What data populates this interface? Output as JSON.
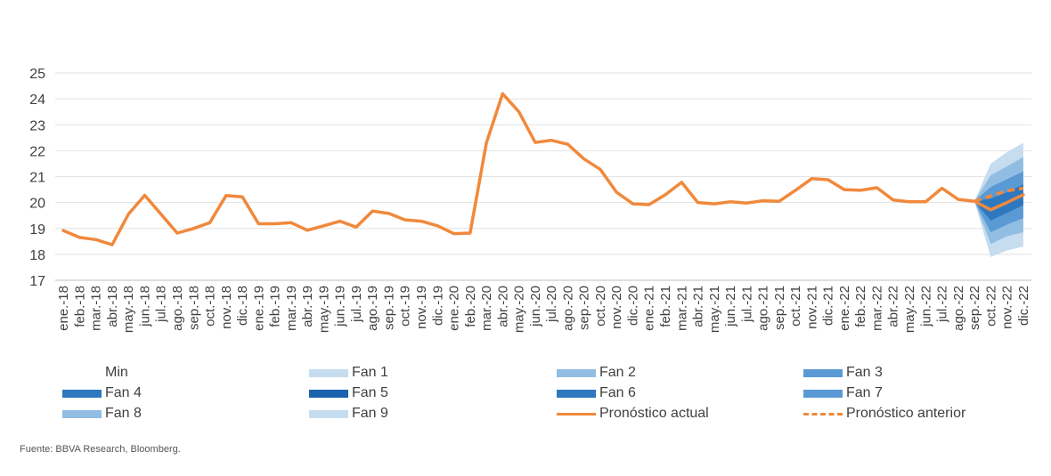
{
  "chart_data": {
    "type": "line",
    "title": "",
    "xlabel": "",
    "ylabel": "",
    "ylim": [
      17,
      25
    ],
    "yticks": [
      "25",
      "24",
      "23",
      "22",
      "21",
      "20",
      "19",
      "18",
      "17"
    ],
    "categories": [
      "ene.-18",
      "feb.-18",
      "mar.-18",
      "abr.-18",
      "may.-18",
      "jun.-18",
      "jul.-18",
      "ago.-18",
      "sep.-18",
      "oct.-18",
      "nov.-18",
      "dic.-18",
      "ene.-19",
      "feb.-19",
      "mar.-19",
      "abr.-19",
      "may.-19",
      "jun.-19",
      "jul.-19",
      "ago.-19",
      "sep.-19",
      "oct.-19",
      "nov.-19",
      "dic.-19",
      "ene.-20",
      "feb.-20",
      "mar.-20",
      "abr.-20",
      "may.-20",
      "jun.-20",
      "jul.-20",
      "ago.-20",
      "sep.-20",
      "oct.-20",
      "nov.-20",
      "dic.-20",
      "ene.-21",
      "feb.-21",
      "mar.-21",
      "abr.-21",
      "may.-21",
      "jun.-21",
      "jul.-21",
      "ago.-21",
      "sep.-21",
      "oct.-21",
      "nov.-21",
      "dic.-21",
      "ene.-22",
      "feb.-22",
      "mar.-22",
      "abr.-22",
      "may.-22",
      "jun.-22",
      "jul.-22",
      "ago.-22",
      "sep.-22",
      "oct.-22",
      "nov.-22",
      "dic.-22"
    ],
    "series": [
      {
        "name": "Pronóstico actual",
        "color": "#f0893c",
        "dashed": false,
        "values": [
          18.92,
          18.65,
          18.57,
          18.37,
          19.55,
          20.28,
          19.55,
          18.82,
          19.0,
          19.22,
          20.27,
          20.22,
          19.18,
          19.18,
          19.22,
          18.93,
          19.1,
          19.28,
          19.05,
          19.67,
          19.58,
          19.33,
          19.28,
          19.1,
          18.8,
          18.82,
          22.3,
          24.2,
          23.5,
          22.32,
          22.4,
          22.25,
          21.68,
          21.28,
          20.4,
          19.95,
          19.92,
          20.3,
          20.78,
          20.0,
          19.95,
          20.03,
          19.98,
          20.07,
          20.05,
          20.47,
          20.92,
          20.88,
          20.5,
          20.47,
          20.57,
          20.1,
          20.03,
          20.03,
          20.55,
          20.12,
          20.05,
          19.72,
          20.0,
          20.3
        ]
      },
      {
        "name": "Pronóstico anterior",
        "color": "#f0893c",
        "dashed": true,
        "values": [
          null,
          null,
          null,
          null,
          null,
          null,
          null,
          null,
          null,
          null,
          null,
          null,
          null,
          null,
          null,
          null,
          null,
          null,
          null,
          null,
          null,
          null,
          null,
          null,
          null,
          null,
          null,
          null,
          null,
          null,
          null,
          null,
          null,
          null,
          null,
          null,
          null,
          null,
          null,
          null,
          null,
          null,
          null,
          null,
          null,
          null,
          null,
          null,
          null,
          null,
          null,
          null,
          null,
          null,
          null,
          null,
          20.05,
          20.25,
          20.45,
          20.55
        ]
      }
    ],
    "fan": {
      "start_index": 56,
      "center": [
        20.05,
        19.72,
        20.0,
        20.3
      ],
      "bands": [
        {
          "lower": [
            20.05,
            17.9,
            18.15,
            18.3
          ],
          "upper": [
            20.05,
            21.5,
            21.95,
            22.3
          ],
          "color": "#c6dcef"
        },
        {
          "lower": [
            20.05,
            18.4,
            18.7,
            18.85
          ],
          "upper": [
            20.05,
            21.05,
            21.4,
            21.75
          ],
          "color": "#92bde2"
        },
        {
          "lower": [
            20.05,
            18.85,
            19.15,
            19.4
          ],
          "upper": [
            20.05,
            20.6,
            20.9,
            21.2
          ],
          "color": "#5a9ad4"
        },
        {
          "lower": [
            20.05,
            19.3,
            19.6,
            19.9
          ],
          "upper": [
            20.05,
            20.15,
            20.4,
            20.7
          ],
          "color": "#2e78c0"
        }
      ]
    },
    "legend": [
      {
        "label": "Min",
        "kind": "none",
        "color": "#ffffff"
      },
      {
        "label": "Fan 1",
        "kind": "swatch",
        "color": "#c6dcef"
      },
      {
        "label": "Fan 2",
        "kind": "swatch",
        "color": "#92bde2"
      },
      {
        "label": "Fan 3",
        "kind": "swatch",
        "color": "#5a9ad4"
      },
      {
        "label": "Fan 4",
        "kind": "swatch",
        "color": "#2e78c0"
      },
      {
        "label": "Fan 5",
        "kind": "swatch",
        "color": "#1b62ac"
      },
      {
        "label": "Fan 6",
        "kind": "swatch",
        "color": "#2e78c0"
      },
      {
        "label": "Fan 7",
        "kind": "swatch",
        "color": "#5a9ad4"
      },
      {
        "label": "Fan 8",
        "kind": "swatch",
        "color": "#92bde2"
      },
      {
        "label": "Fan 9",
        "kind": "swatch",
        "color": "#c6dcef"
      },
      {
        "label": "Pronóstico actual",
        "kind": "line",
        "color": "#f0893c"
      },
      {
        "label": "Pronóstico anterior",
        "kind": "dashed",
        "color": "#f0893c"
      }
    ],
    "source": "Fuente: BBVA Research, Bloomberg."
  }
}
